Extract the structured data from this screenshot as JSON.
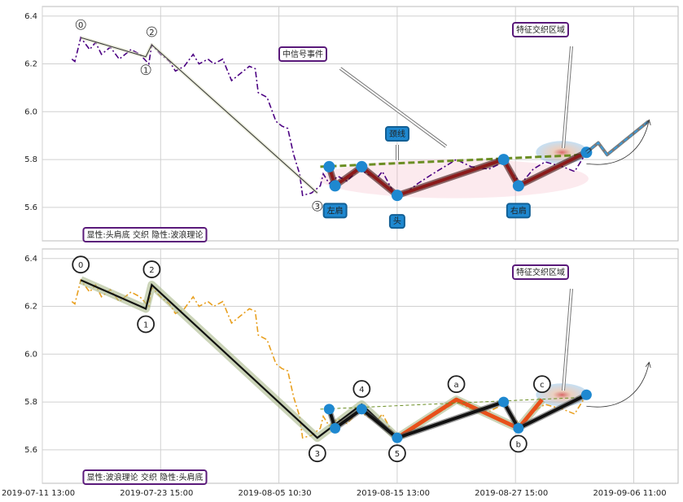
{
  "chart_data": [
    {
      "type": "line",
      "xlim": [
        0,
        215
      ],
      "ylim": [
        5.46,
        6.44
      ],
      "yticks": [
        5.6,
        5.8,
        {
          "value": 6,
          "label": "6.0"
        },
        6.2,
        6.4
      ],
      "grid": true,
      "price": {
        "color": "#4b0082",
        "x": [
          10,
          11,
          13,
          16,
          18,
          20,
          23,
          26,
          30,
          33,
          36,
          37,
          40,
          43,
          45,
          48,
          51,
          53,
          56,
          58,
          61,
          64,
          67,
          70,
          72,
          73,
          76,
          79,
          81,
          83,
          85,
          87,
          88,
          91,
          94,
          95,
          97,
          100,
          103,
          107,
          110,
          113,
          115,
          118,
          120,
          123,
          127,
          132,
          136,
          140,
          145,
          151,
          156,
          159,
          162,
          166,
          170,
          176,
          180,
          182,
          184
        ],
        "values": [
          6.22,
          6.21,
          6.31,
          6.26,
          6.29,
          6.24,
          6.27,
          6.22,
          6.26,
          6.24,
          6.2,
          6.28,
          6.24,
          6.21,
          6.17,
          6.19,
          6.24,
          6.2,
          6.22,
          6.2,
          6.22,
          6.13,
          6.16,
          6.19,
          6.18,
          6.08,
          6.06,
          5.96,
          5.94,
          5.93,
          5.82,
          5.74,
          5.65,
          5.66,
          5.69,
          5.74,
          5.7,
          5.73,
          5.71,
          5.76,
          5.74,
          5.72,
          5.75,
          5.68,
          5.64,
          5.66,
          5.7,
          5.74,
          5.77,
          5.8,
          5.77,
          5.76,
          5.79,
          5.74,
          5.7,
          5.76,
          5.79,
          5.77,
          5.75,
          5.79,
          5.83
        ]
      },
      "wave": {
        "color": "#333333",
        "x": [
          13,
          35,
          37,
          93
        ],
        "values": [
          6.31,
          6.23,
          6.28,
          5.66
        ],
        "labels": [
          "0",
          "1",
          "2",
          "3"
        ]
      },
      "pattern": {
        "color": "#8b1a1a",
        "x": [
          97,
          99,
          108,
          120,
          156,
          161,
          184
        ],
        "values": [
          5.77,
          5.69,
          5.77,
          5.65,
          5.8,
          5.69,
          5.83
        ],
        "labels": [
          null,
          "左肩",
          null,
          "头",
          null,
          "右肩",
          null
        ]
      },
      "neckline": {
        "color": "#6b8e23",
        "x": [
          94,
          184
        ],
        "values": [
          5.77,
          5.82
        ]
      },
      "projection": {
        "color": "#3a9ad9",
        "x": [
          184,
          188,
          191,
          205
        ],
        "values": [
          5.83,
          5.87,
          5.82,
          5.96
        ]
      },
      "annotations": [
        "中信号事件",
        "特征交织区域",
        "颈线"
      ],
      "caption": "显性:头肩底 交织 隐性:波浪理论"
    },
    {
      "type": "line",
      "xlim": [
        0,
        215
      ],
      "ylim": [
        5.46,
        6.44
      ],
      "yticks": [
        5.6,
        5.8,
        {
          "value": 6,
          "label": "6.0"
        },
        6.2,
        6.4
      ],
      "xticks": [
        {
          "value": 0,
          "label": "2019-07-11 13:00"
        },
        {
          "value": 40,
          "label": "2019-07-23 15:00"
        },
        {
          "value": 80,
          "label": "2019-08-05 10:30"
        },
        {
          "value": 120,
          "label": "2019-08-15 13:00"
        },
        {
          "value": 160,
          "label": "2019-08-27 15:00"
        },
        {
          "value": 200,
          "label": "2019-09-06 11:00"
        }
      ],
      "grid": true,
      "price": {
        "color": "#e8a020",
        "x": [
          10,
          11,
          13,
          16,
          18,
          20,
          23,
          26,
          30,
          33,
          36,
          37,
          40,
          43,
          45,
          48,
          51,
          53,
          56,
          58,
          61,
          64,
          67,
          70,
          72,
          73,
          76,
          79,
          81,
          83,
          85,
          87,
          88,
          91,
          94,
          95,
          97,
          100,
          103,
          107,
          110,
          113,
          115,
          118,
          120,
          123,
          127,
          132,
          136,
          140,
          145,
          151,
          156,
          159,
          162,
          166,
          170,
          176,
          180,
          182,
          184
        ],
        "values": [
          6.22,
          6.21,
          6.31,
          6.26,
          6.29,
          6.24,
          6.27,
          6.22,
          6.26,
          6.24,
          6.2,
          6.28,
          6.24,
          6.21,
          6.17,
          6.19,
          6.24,
          6.2,
          6.22,
          6.2,
          6.22,
          6.13,
          6.16,
          6.19,
          6.18,
          6.08,
          6.06,
          5.96,
          5.94,
          5.93,
          5.82,
          5.74,
          5.65,
          5.66,
          5.69,
          5.74,
          5.7,
          5.73,
          5.71,
          5.76,
          5.74,
          5.72,
          5.75,
          5.68,
          5.64,
          5.66,
          5.7,
          5.74,
          5.77,
          5.8,
          5.77,
          5.76,
          5.79,
          5.74,
          5.7,
          5.76,
          5.79,
          5.77,
          5.75,
          5.79,
          5.83
        ]
      },
      "wave": {
        "color": "#111111",
        "x": [
          13,
          35,
          37,
          93,
          108,
          120,
          140,
          161,
          169
        ],
        "values": [
          6.31,
          6.19,
          6.29,
          5.65,
          5.79,
          5.65,
          5.81,
          5.69,
          5.81
        ],
        "labels": [
          "0",
          "1",
          "2",
          "3",
          "4",
          "5",
          "a",
          "b",
          "c"
        ]
      },
      "correction": {
        "color": "#e8501a",
        "x": [
          120,
          140,
          161,
          169
        ],
        "values": [
          5.65,
          5.81,
          5.69,
          5.81
        ]
      },
      "pattern": {
        "color": "#111111",
        "x": [
          97,
          99,
          108,
          120,
          156,
          161,
          184
        ],
        "values": [
          5.77,
          5.69,
          5.77,
          5.65,
          5.8,
          5.69,
          5.83
        ]
      },
      "neckline": {
        "color": "#6b8e23",
        "x": [
          94,
          184
        ],
        "values": [
          5.77,
          5.82
        ]
      },
      "annotations": [
        "特征交织区域"
      ],
      "caption": "显性:波浪理论 交织 隐性:头肩底"
    }
  ]
}
